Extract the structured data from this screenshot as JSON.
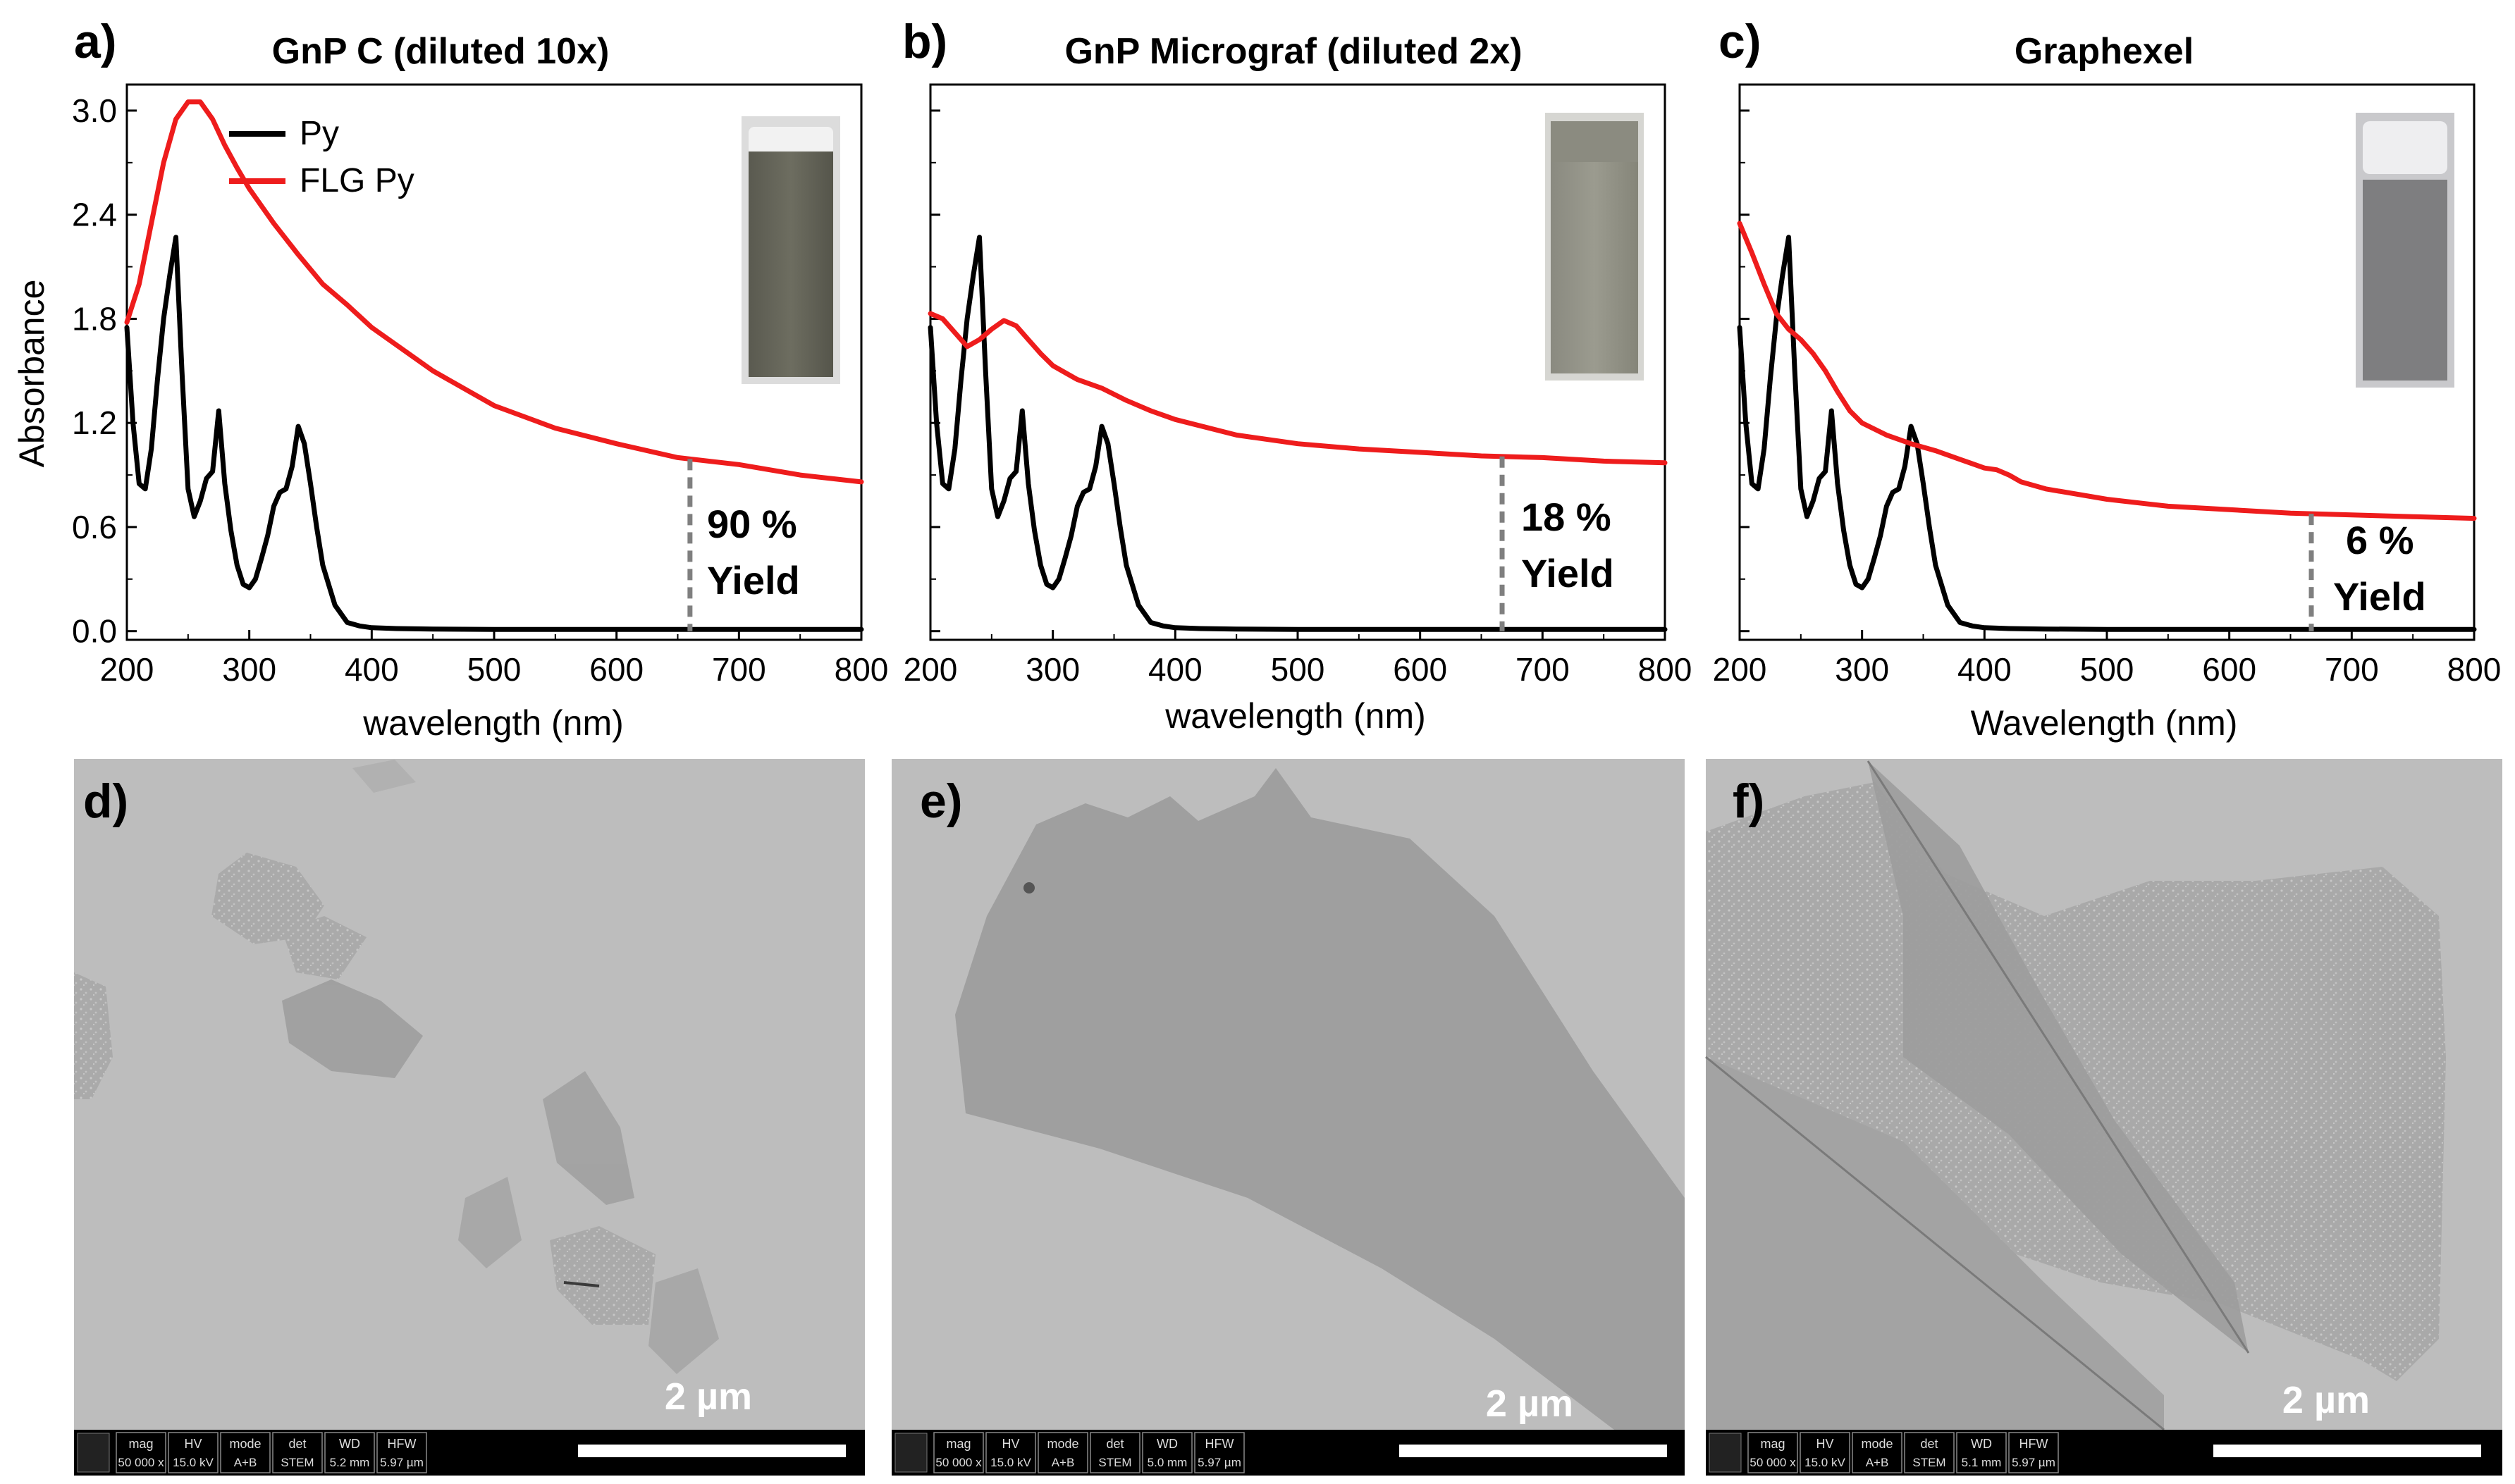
{
  "figure_title": "",
  "colors": {
    "py": "#000000",
    "flg": "#ee1c1c",
    "yield_line": "#7f7f7f",
    "sem_background": "#bdbdbd",
    "scale_bar": "#ffffff",
    "info_bar": "#000000"
  },
  "chart_data": [
    {
      "type": "line",
      "panel_label": "a)",
      "title": "GnP C (diluted 10x)",
      "xlabel": "wavelength (nm)",
      "ylabel": "Absorbance",
      "xlim": [
        200,
        800
      ],
      "ylim": [
        -0.05,
        3.15
      ],
      "xticks": [
        "200",
        "300",
        "400",
        "500",
        "600",
        "700",
        "800"
      ],
      "yticks": [
        "0.0",
        "0.6",
        "1.2",
        "1.8",
        "2.4",
        "3.0"
      ],
      "legend": [
        "Py",
        "FLG Py"
      ],
      "inset": "cuvette photo",
      "yield_label": [
        "90 %",
        "Yield"
      ],
      "yield_wavelength": 660,
      "series": [
        {
          "name": "Py",
          "x": [
            200,
            205,
            210,
            215,
            220,
            225,
            230,
            235,
            240,
            245,
            250,
            255,
            260,
            265,
            270,
            275,
            280,
            285,
            290,
            295,
            300,
            305,
            310,
            315,
            320,
            325,
            330,
            335,
            340,
            345,
            350,
            355,
            360,
            370,
            380,
            390,
            400,
            420,
            450,
            500,
            550,
            600,
            650,
            700,
            750,
            800
          ],
          "values": [
            1.75,
            1.2,
            0.85,
            0.82,
            1.05,
            1.45,
            1.8,
            2.05,
            2.27,
            1.5,
            0.82,
            0.66,
            0.75,
            0.88,
            0.92,
            1.27,
            0.85,
            0.58,
            0.38,
            0.27,
            0.25,
            0.3,
            0.42,
            0.55,
            0.72,
            0.8,
            0.82,
            0.95,
            1.18,
            1.08,
            0.85,
            0.6,
            0.38,
            0.15,
            0.05,
            0.03,
            0.02,
            0.015,
            0.012,
            0.01,
            0.01,
            0.01,
            0.01,
            0.01,
            0.01,
            0.01
          ]
        },
        {
          "name": "FLG Py",
          "x": [
            200,
            210,
            220,
            230,
            240,
            250,
            260,
            270,
            280,
            290,
            300,
            320,
            340,
            360,
            380,
            400,
            450,
            500,
            550,
            600,
            650,
            700,
            750,
            800
          ],
          "values": [
            1.78,
            2.0,
            2.35,
            2.7,
            2.95,
            3.05,
            3.05,
            2.95,
            2.8,
            2.67,
            2.55,
            2.35,
            2.17,
            2.0,
            1.88,
            1.75,
            1.5,
            1.3,
            1.17,
            1.08,
            1.0,
            0.96,
            0.9,
            0.86
          ]
        }
      ]
    },
    {
      "type": "line",
      "panel_label": "b)",
      "title": "GnP Micrograf (diluted 2x)",
      "xlabel": "wavelength (nm)",
      "ylabel": "",
      "xlim": [
        200,
        800
      ],
      "ylim": [
        -0.05,
        3.15
      ],
      "xticks": [
        "200",
        "300",
        "400",
        "500",
        "600",
        "700",
        "800"
      ],
      "yticks": [],
      "inset": "cuvette photo",
      "yield_label": [
        "18 %",
        "Yield"
      ],
      "yield_wavelength": 667,
      "series": [
        {
          "name": "Py",
          "x": [
            200,
            205,
            210,
            215,
            220,
            225,
            230,
            235,
            240,
            245,
            250,
            255,
            260,
            265,
            270,
            275,
            280,
            285,
            290,
            295,
            300,
            305,
            310,
            315,
            320,
            325,
            330,
            335,
            340,
            345,
            350,
            355,
            360,
            370,
            380,
            390,
            400,
            420,
            450,
            500,
            550,
            600,
            650,
            700,
            750,
            800
          ],
          "values": [
            1.75,
            1.2,
            0.85,
            0.82,
            1.05,
            1.45,
            1.8,
            2.05,
            2.27,
            1.5,
            0.82,
            0.66,
            0.75,
            0.88,
            0.92,
            1.27,
            0.85,
            0.58,
            0.38,
            0.27,
            0.25,
            0.3,
            0.42,
            0.55,
            0.72,
            0.8,
            0.82,
            0.95,
            1.18,
            1.08,
            0.85,
            0.6,
            0.38,
            0.15,
            0.05,
            0.03,
            0.02,
            0.015,
            0.012,
            0.01,
            0.01,
            0.01,
            0.01,
            0.01,
            0.01,
            0.01
          ]
        },
        {
          "name": "FLG Py",
          "x": [
            200,
            210,
            220,
            230,
            240,
            250,
            260,
            270,
            280,
            290,
            300,
            320,
            340,
            360,
            380,
            400,
            450,
            500,
            550,
            600,
            650,
            700,
            750,
            800
          ],
          "values": [
            1.83,
            1.8,
            1.72,
            1.64,
            1.68,
            1.74,
            1.79,
            1.76,
            1.68,
            1.6,
            1.53,
            1.45,
            1.4,
            1.33,
            1.27,
            1.22,
            1.13,
            1.08,
            1.05,
            1.03,
            1.01,
            1.0,
            0.98,
            0.97
          ]
        }
      ]
    },
    {
      "type": "line",
      "panel_label": "c)",
      "title": "Graphexel",
      "xlabel": "Wavelength (nm)",
      "ylabel": "",
      "xlim": [
        200,
        800
      ],
      "ylim": [
        -0.05,
        3.15
      ],
      "xticks": [
        "200",
        "300",
        "400",
        "500",
        "600",
        "700",
        "800"
      ],
      "yticks": [],
      "inset": "cuvette photo",
      "yield_label": [
        "6 %",
        "Yield"
      ],
      "yield_wavelength": 667,
      "series": [
        {
          "name": "Py",
          "x": [
            200,
            205,
            210,
            215,
            220,
            225,
            230,
            235,
            240,
            245,
            250,
            255,
            260,
            265,
            270,
            275,
            280,
            285,
            290,
            295,
            300,
            305,
            310,
            315,
            320,
            325,
            330,
            335,
            340,
            345,
            350,
            355,
            360,
            370,
            380,
            390,
            400,
            420,
            450,
            500,
            550,
            600,
            650,
            700,
            750,
            800
          ],
          "values": [
            1.75,
            1.2,
            0.85,
            0.82,
            1.05,
            1.45,
            1.8,
            2.05,
            2.27,
            1.5,
            0.82,
            0.66,
            0.75,
            0.88,
            0.92,
            1.27,
            0.85,
            0.58,
            0.38,
            0.27,
            0.25,
            0.3,
            0.42,
            0.55,
            0.72,
            0.8,
            0.82,
            0.95,
            1.18,
            1.08,
            0.85,
            0.6,
            0.38,
            0.15,
            0.05,
            0.03,
            0.02,
            0.015,
            0.012,
            0.01,
            0.01,
            0.01,
            0.01,
            0.01,
            0.01,
            0.01
          ]
        },
        {
          "name": "FLG Py",
          "x": [
            200,
            210,
            220,
            230,
            240,
            250,
            260,
            270,
            280,
            290,
            300,
            320,
            340,
            360,
            380,
            400,
            410,
            420,
            430,
            450,
            500,
            550,
            600,
            650,
            700,
            750,
            800
          ],
          "values": [
            2.35,
            2.18,
            2.0,
            1.83,
            1.74,
            1.68,
            1.6,
            1.5,
            1.38,
            1.27,
            1.2,
            1.13,
            1.08,
            1.04,
            0.99,
            0.94,
            0.93,
            0.9,
            0.86,
            0.82,
            0.76,
            0.72,
            0.7,
            0.68,
            0.67,
            0.66,
            0.65
          ]
        }
      ]
    }
  ],
  "sem_panels": [
    {
      "panel_label": "d)",
      "scale_label": "2 µm",
      "info": {
        "mag_label": "mag",
        "mag": "50 000 x",
        "hv_label": "HV",
        "hv": "15.0 kV",
        "mode_label": "mode",
        "mode": "A+B",
        "det_label": "det",
        "det": "STEM",
        "wd_label": "WD",
        "wd": "5.2 mm",
        "hfw_label": "HFW",
        "hfw": "5.97 µm"
      }
    },
    {
      "panel_label": "e)",
      "scale_label": "2 µm",
      "info": {
        "mag_label": "mag",
        "mag": "50 000 x",
        "hv_label": "HV",
        "hv": "15.0 kV",
        "mode_label": "mode",
        "mode": "A+B",
        "det_label": "det",
        "det": "STEM",
        "wd_label": "WD",
        "wd": "5.0 mm",
        "hfw_label": "HFW",
        "hfw": "5.97 µm"
      }
    },
    {
      "panel_label": "f)",
      "scale_label": "2 µm",
      "info": {
        "mag_label": "mag",
        "mag": "50 000 x",
        "hv_label": "HV",
        "hv": "15.0 kV",
        "mode_label": "mode",
        "mode": "A+B",
        "det_label": "det",
        "det": "STEM",
        "wd_label": "WD",
        "wd": "5.1 mm",
        "hfw_label": "HFW",
        "hfw": "5.97 µm"
      }
    }
  ]
}
